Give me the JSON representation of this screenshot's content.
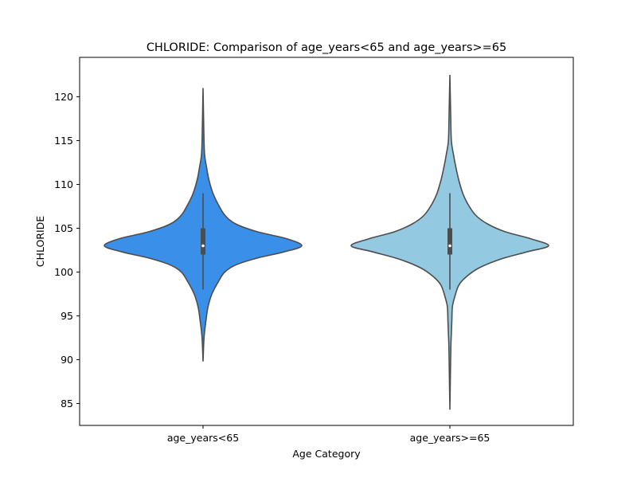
{
  "chart_data": {
    "type": "violin",
    "title": "CHLORIDE: Comparison of age_years<65 and age_years>=65",
    "xlabel": "Age Category",
    "ylabel": "CHLORIDE",
    "ylim": [
      82.5,
      124.5
    ],
    "yticks": [
      85,
      90,
      95,
      100,
      105,
      110,
      115,
      120
    ],
    "grid": false,
    "categories": [
      "age_years<65",
      "age_years>=65"
    ],
    "series": [
      {
        "category": "age_years<65",
        "color": "#3a8fe8",
        "min": 89.8,
        "q1": 102.0,
        "median": 103.0,
        "q3": 105.0,
        "max": 121.0,
        "whisker_low": 98.0,
        "whisker_high": 109.0,
        "density": [
          [
            89.8,
            0.0
          ],
          [
            92.5,
            0.01
          ],
          [
            94.5,
            0.03
          ],
          [
            96,
            0.05
          ],
          [
            97.5,
            0.09
          ],
          [
            99,
            0.16
          ],
          [
            100,
            0.22
          ],
          [
            100.8,
            0.33
          ],
          [
            101.6,
            0.55
          ],
          [
            102.3,
            0.82
          ],
          [
            103.0,
            1.0
          ],
          [
            103.8,
            0.85
          ],
          [
            104.6,
            0.55
          ],
          [
            105.5,
            0.33
          ],
          [
            106.5,
            0.22
          ],
          [
            107.8,
            0.15
          ],
          [
            109,
            0.1
          ],
          [
            110.5,
            0.06
          ],
          [
            112,
            0.035
          ],
          [
            113.5,
            0.015
          ],
          [
            116,
            0.008
          ],
          [
            121.0,
            0.0
          ]
        ]
      },
      {
        "category": "age_years>=65",
        "color": "#93c9e1",
        "min": 84.3,
        "q1": 102.0,
        "median": 103.0,
        "q3": 105.0,
        "max": 122.5,
        "whisker_low": 98.0,
        "whisker_high": 109.0,
        "density": [
          [
            84.3,
            0.0
          ],
          [
            88,
            0.005
          ],
          [
            91.5,
            0.01
          ],
          [
            93,
            0.015
          ],
          [
            94.5,
            0.02
          ],
          [
            96,
            0.025
          ],
          [
            97,
            0.045
          ],
          [
            98.5,
            0.09
          ],
          [
            99.5,
            0.17
          ],
          [
            100.5,
            0.3
          ],
          [
            101.5,
            0.52
          ],
          [
            102.3,
            0.78
          ],
          [
            103.0,
            1.0
          ],
          [
            103.8,
            0.82
          ],
          [
            104.6,
            0.56
          ],
          [
            105.5,
            0.38
          ],
          [
            106.5,
            0.26
          ],
          [
            107.8,
            0.18
          ],
          [
            109,
            0.13
          ],
          [
            110.5,
            0.09
          ],
          [
            112,
            0.06
          ],
          [
            113.5,
            0.035
          ],
          [
            115,
            0.015
          ],
          [
            118,
            0.008
          ],
          [
            122.5,
            0.0
          ]
        ]
      }
    ]
  }
}
